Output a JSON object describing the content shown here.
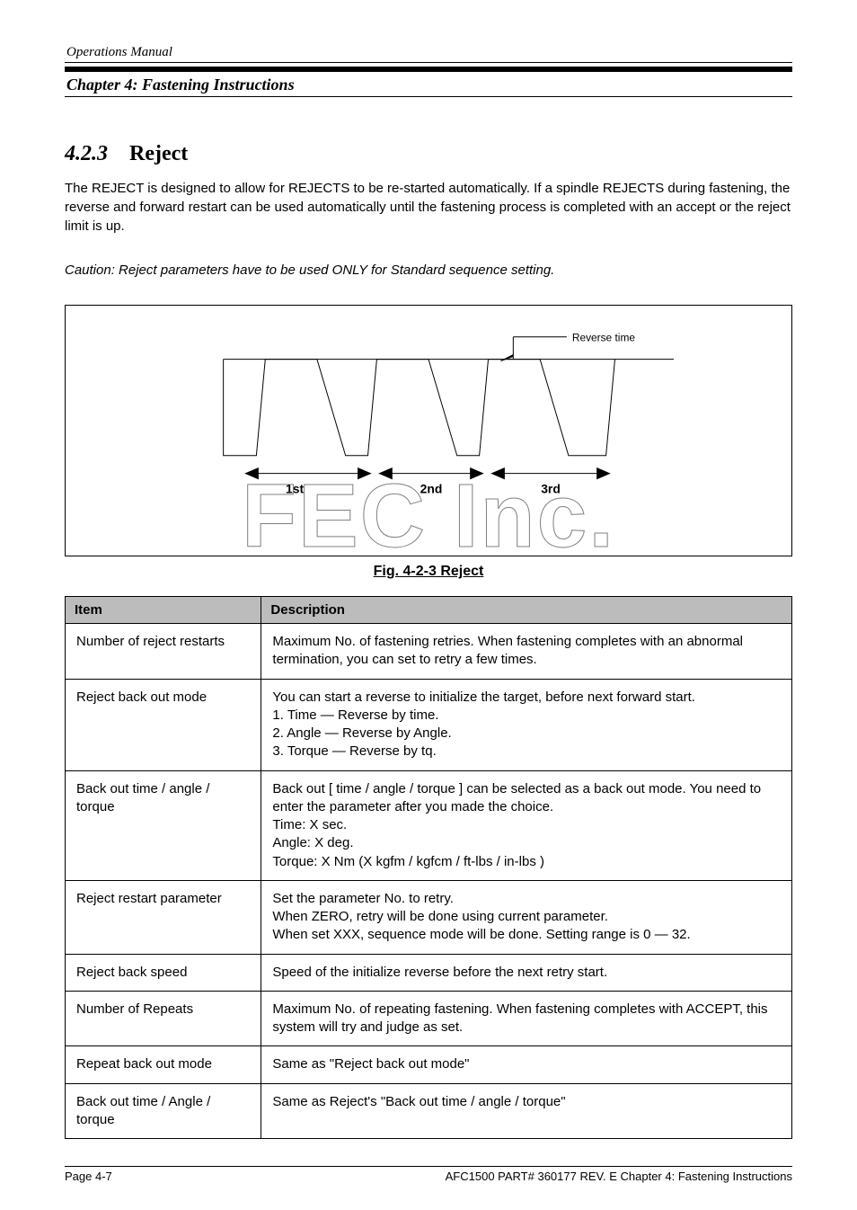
{
  "header": {
    "manual": "Operations Manual"
  },
  "chapter": {
    "title": "Chapter 4: Fastening Instructions"
  },
  "section": {
    "number": "4.2.3",
    "heading": "Reject",
    "body": "The REJECT is designed to allow for REJECTS to be re-started automatically. If a spindle REJECTS during fastening, the reverse and forward restart can be used automatically until the fastening process is completed with an accept or the reject limit is up.",
    "note": "Caution: Reject parameters have to be used ONLY for Standard sequence setting."
  },
  "figure": {
    "caption": "Fig. 4-2-3 Reject",
    "cycles": [
      "1st",
      "2nd",
      "3rd"
    ],
    "reverseTimeLabel": "Reverse time"
  },
  "table": {
    "headers": [
      "Item",
      "Description"
    ],
    "rows": [
      {
        "item": "Number of reject restarts",
        "desc": "Maximum No. of fastening retries. When fastening completes with an abnormal termination, you can set to retry a few times."
      },
      {
        "item": "Reject back out mode",
        "desc": "You can start a reverse to initialize the target, before next forward start.\n1. Time — Reverse by time.\n2. Angle — Reverse by Angle.\n3. Torque — Reverse by tq."
      },
      {
        "item": "Back out time / angle / torque",
        "desc": "Back out [ time / angle / torque ] can be selected as a back out mode. You need to enter the parameter after you made the choice.\nTime: X sec.\nAngle: X deg.\nTorque: X Nm (X kgfm / kgfcm / ft-lbs / in-lbs )"
      },
      {
        "item": "Reject restart parameter",
        "desc": "Set the parameter No. to retry.\nWhen ZERO, retry will be done using current parameter.\nWhen set XXX, sequence mode will be done. Setting range is 0 — 32."
      },
      {
        "item": "Reject back speed",
        "desc": "Speed of the initialize reverse before the next retry start."
      },
      {
        "item": "Number of Repeats",
        "desc": "Maximum No. of repeating fastening. When fastening completes with ACCEPT, this system will try and judge as set."
      },
      {
        "item": "Repeat back out mode",
        "desc": "Same as \"Reject back out mode\""
      },
      {
        "item": "Back out time / Angle / torque",
        "desc": "Same as Reject's \"Back out time / angle / torque\""
      }
    ]
  },
  "footer": {
    "pageInfo": "Page 4-7",
    "copyright": "AFC1500 PART# 360177 REV. E     Chapter 4: Fastening Instructions"
  }
}
